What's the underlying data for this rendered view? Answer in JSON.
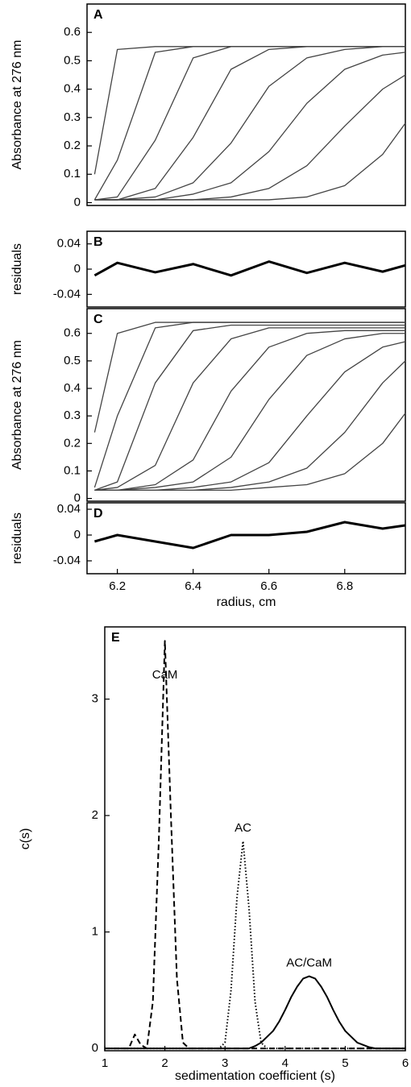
{
  "chart_data": [
    {
      "type": "line",
      "label": "A",
      "ylabel": "Absorbance at 276 nm",
      "color": "#444",
      "xlim": [
        6.12,
        6.96
      ],
      "ylim": [
        -0.01,
        0.7
      ],
      "yticks": [
        0,
        0.1,
        0.2,
        0.3,
        0.4,
        0.5,
        0.6
      ],
      "x": [
        6.14,
        6.2,
        6.3,
        6.4,
        6.5,
        6.6,
        6.7,
        6.8,
        6.9,
        6.96
      ],
      "series": [
        {
          "values": [
            0.1,
            0.54,
            0.55,
            0.55,
            0.55,
            0.55,
            0.55,
            0.55,
            0.55,
            0.55
          ]
        },
        {
          "values": [
            0.01,
            0.15,
            0.53,
            0.55,
            0.55,
            0.55,
            0.55,
            0.55,
            0.55,
            0.55
          ]
        },
        {
          "values": [
            0.01,
            0.02,
            0.22,
            0.51,
            0.55,
            0.55,
            0.55,
            0.55,
            0.55,
            0.55
          ]
        },
        {
          "values": [
            0.01,
            0.01,
            0.05,
            0.23,
            0.47,
            0.54,
            0.55,
            0.55,
            0.55,
            0.55
          ]
        },
        {
          "values": [
            0.01,
            0.01,
            0.02,
            0.07,
            0.21,
            0.41,
            0.51,
            0.54,
            0.55,
            0.55
          ]
        },
        {
          "values": [
            0.01,
            0.01,
            0.01,
            0.03,
            0.07,
            0.18,
            0.35,
            0.47,
            0.52,
            0.53
          ]
        },
        {
          "values": [
            0.01,
            0.01,
            0.01,
            0.01,
            0.02,
            0.05,
            0.13,
            0.27,
            0.4,
            0.45
          ]
        },
        {
          "values": [
            0.01,
            0.01,
            0.01,
            0.01,
            0.01,
            0.01,
            0.02,
            0.06,
            0.17,
            0.28
          ]
        }
      ]
    },
    {
      "type": "line",
      "label": "B",
      "ylabel": "residuals",
      "color": "#000",
      "xlim": [
        6.12,
        6.96
      ],
      "ylim": [
        -0.06,
        0.06
      ],
      "yticks": [
        -0.04,
        0,
        0.04
      ],
      "x": [
        6.14,
        6.2,
        6.3,
        6.4,
        6.5,
        6.6,
        6.7,
        6.8,
        6.9,
        6.96
      ],
      "series": [
        {
          "values": [
            -0.01,
            0.01,
            -0.005,
            0.008,
            -0.01,
            0.012,
            -0.006,
            0.01,
            -0.004,
            0.006
          ]
        }
      ]
    },
    {
      "type": "line",
      "label": "C",
      "ylabel": "Absorbance at 276 nm",
      "color": "#444",
      "xlim": [
        6.12,
        6.96
      ],
      "ylim": [
        -0.01,
        0.69
      ],
      "yticks": [
        0,
        0.1,
        0.2,
        0.3,
        0.4,
        0.5,
        0.6
      ],
      "x": [
        6.14,
        6.2,
        6.3,
        6.4,
        6.5,
        6.6,
        6.7,
        6.8,
        6.9,
        6.96
      ],
      "series": [
        {
          "values": [
            0.24,
            0.6,
            0.64,
            0.64,
            0.64,
            0.64,
            0.64,
            0.64,
            0.64,
            0.64
          ]
        },
        {
          "values": [
            0.04,
            0.3,
            0.62,
            0.64,
            0.64,
            0.64,
            0.64,
            0.64,
            0.64,
            0.64
          ]
        },
        {
          "values": [
            0.03,
            0.06,
            0.42,
            0.61,
            0.63,
            0.63,
            0.63,
            0.63,
            0.63,
            0.63
          ]
        },
        {
          "values": [
            0.03,
            0.04,
            0.12,
            0.42,
            0.58,
            0.62,
            0.62,
            0.62,
            0.62,
            0.62
          ]
        },
        {
          "values": [
            0.03,
            0.03,
            0.05,
            0.14,
            0.39,
            0.55,
            0.6,
            0.61,
            0.61,
            0.61
          ]
        },
        {
          "values": [
            0.03,
            0.03,
            0.04,
            0.06,
            0.15,
            0.36,
            0.52,
            0.58,
            0.6,
            0.6
          ]
        },
        {
          "values": [
            0.03,
            0.03,
            0.03,
            0.04,
            0.06,
            0.13,
            0.3,
            0.46,
            0.55,
            0.57
          ]
        },
        {
          "values": [
            0.03,
            0.03,
            0.03,
            0.03,
            0.04,
            0.06,
            0.11,
            0.24,
            0.42,
            0.5
          ]
        },
        {
          "values": [
            0.03,
            0.03,
            0.03,
            0.03,
            0.03,
            0.04,
            0.05,
            0.09,
            0.2,
            0.31
          ]
        }
      ]
    },
    {
      "type": "line",
      "label": "D",
      "ylabel": "residuals",
      "xlabel": "radius, cm",
      "color": "#000",
      "xlim": [
        6.12,
        6.96
      ],
      "ylim": [
        -0.06,
        0.05
      ],
      "yticks": [
        -0.04,
        0,
        0.04
      ],
      "xticks": [
        6.2,
        6.4,
        6.6,
        6.8
      ],
      "x": [
        6.14,
        6.2,
        6.3,
        6.4,
        6.5,
        6.6,
        6.7,
        6.8,
        6.9,
        6.96
      ],
      "series": [
        {
          "values": [
            -0.01,
            0.0,
            -0.01,
            -0.02,
            0.0,
            0.0,
            0.005,
            0.02,
            0.01,
            0.015
          ]
        }
      ]
    },
    {
      "type": "line",
      "label": "E",
      "ylabel": "c(s)",
      "xlabel": "sedimentation coefficient (s)",
      "color": "#000",
      "xlim": [
        1,
        6
      ],
      "ylim": [
        -0.02,
        3.62
      ],
      "yticks": [
        0,
        1,
        2,
        3
      ],
      "xticks": [
        1,
        2,
        3,
        4,
        5,
        6
      ],
      "x": [
        1.0,
        1.1,
        1.2,
        1.3,
        1.4,
        1.5,
        1.6,
        1.7,
        1.8,
        1.9,
        2.0,
        2.1,
        2.2,
        2.3,
        2.4,
        2.5,
        2.6,
        2.7,
        2.8,
        2.9,
        3.0,
        3.1,
        3.2,
        3.3,
        3.4,
        3.5,
        3.6,
        3.7,
        3.8,
        3.9,
        4.0,
        4.1,
        4.2,
        4.3,
        4.4,
        4.5,
        4.6,
        4.7,
        4.8,
        4.9,
        5.0,
        5.1,
        5.2,
        5.3,
        5.4,
        5.5,
        5.6,
        5.7,
        5.8,
        5.9,
        6.0
      ],
      "series": [
        {
          "name": "CaM",
          "dash": "dashed",
          "values": [
            0,
            0,
            0,
            0,
            0,
            0.12,
            0.03,
            0,
            0.4,
            1.8,
            3.5,
            2.0,
            0.6,
            0.05,
            0,
            0,
            0,
            0,
            0,
            0,
            0,
            0,
            0,
            0,
            0,
            0,
            0,
            0,
            0,
            0,
            0,
            0,
            0,
            0,
            0,
            0,
            0,
            0,
            0,
            0,
            0,
            0,
            0,
            0,
            0,
            0,
            0,
            0,
            0,
            0,
            0
          ]
        },
        {
          "name": "AC",
          "dash": "dotted",
          "values": [
            0,
            0,
            0,
            0,
            0,
            0,
            0,
            0,
            0,
            0,
            0,
            0,
            0,
            0,
            0,
            0,
            0,
            0,
            0,
            0,
            0.05,
            0.5,
            1.3,
            1.78,
            1.2,
            0.4,
            0.05,
            0,
            0,
            0,
            0,
            0,
            0,
            0,
            0,
            0,
            0,
            0,
            0,
            0,
            0,
            0,
            0,
            0,
            0,
            0,
            0,
            0,
            0,
            0,
            0
          ]
        },
        {
          "name": "AC/CaM",
          "dash": "solid",
          "values": [
            0,
            0,
            0,
            0,
            0,
            0,
            0,
            0,
            0,
            0,
            0,
            0,
            0,
            0,
            0,
            0,
            0,
            0,
            0,
            0,
            0,
            0,
            0,
            0,
            0,
            0.02,
            0.05,
            0.1,
            0.15,
            0.23,
            0.33,
            0.44,
            0.53,
            0.6,
            0.62,
            0.6,
            0.53,
            0.44,
            0.33,
            0.23,
            0.15,
            0.1,
            0.05,
            0.03,
            0.01,
            0,
            0,
            0,
            0,
            0,
            0
          ]
        }
      ]
    }
  ]
}
